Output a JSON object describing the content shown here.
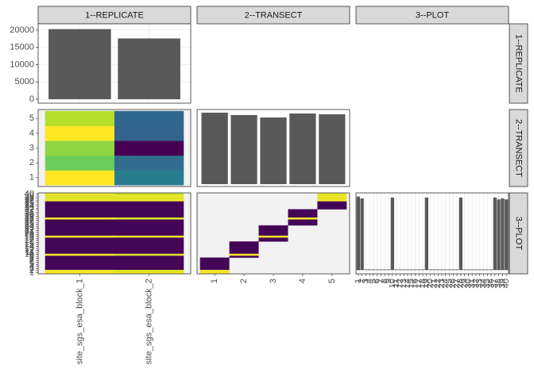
{
  "chart_data": {
    "type": "pairs",
    "variables": [
      {
        "name": "1--REPLICATE",
        "levels": [
          "site_sgs_esa_block_1",
          "site_sgs_esa_block_2"
        ]
      },
      {
        "name": "2--TRANSECT",
        "levels": [
          "1",
          "2",
          "3",
          "4",
          "5"
        ]
      },
      {
        "name": "3--PLOT",
        "levels": [
          "1",
          "2",
          "3",
          "4",
          "5",
          "6",
          "7",
          "8",
          "9",
          "10",
          "11",
          "12",
          "13",
          "14",
          "15",
          "16",
          "17",
          "18",
          "19",
          "20",
          "21",
          "22",
          "23",
          "24",
          "25",
          "26",
          "27",
          "28",
          "29",
          "30",
          "31",
          "32",
          "33",
          "34",
          "35",
          "36",
          "37",
          "38",
          "39",
          "40"
        ]
      }
    ],
    "colormap": "viridis",
    "color": "#595959",
    "panels": [
      {
        "type": "bar",
        "values": [
          20300,
          17600
        ],
        "ylim": [
          -1150,
          21840
        ],
        "yticks": [
          0,
          5000,
          10000,
          15000,
          20000
        ],
        "grid": true
      },
      {
        "type": "heatmap",
        "zlim": [
          3270,
          4150
        ],
        "z": [
          [
            4150,
            3640
          ],
          [
            3950,
            3580
          ],
          [
            4000,
            3270
          ],
          [
            4150,
            3550
          ],
          [
            4050,
            3560
          ]
        ]
      },
      {
        "type": "bar",
        "values": [
          7790,
          7530,
          7270,
          7700,
          7610
        ],
        "ylim": [
          -260,
          8130
        ]
      },
      {
        "type": "heatmap",
        "zlim": [
          0,
          2000
        ],
        "z": [
          [
            2000,
            1950
          ],
          [
            1950,
            1900
          ],
          [
            20,
            20
          ],
          [
            20,
            20
          ],
          [
            20,
            20
          ],
          [
            20,
            20
          ],
          [
            20,
            20
          ],
          [
            20,
            20
          ],
          [
            20,
            20
          ],
          [
            2000,
            1900
          ],
          [
            20,
            20
          ],
          [
            20,
            20
          ],
          [
            20,
            20
          ],
          [
            20,
            20
          ],
          [
            20,
            20
          ],
          [
            20,
            20
          ],
          [
            20,
            20
          ],
          [
            20,
            20
          ],
          [
            1980,
            1920
          ],
          [
            20,
            20
          ],
          [
            20,
            20
          ],
          [
            20,
            20
          ],
          [
            20,
            20
          ],
          [
            20,
            20
          ],
          [
            20,
            20
          ],
          [
            20,
            20
          ],
          [
            20,
            20
          ],
          [
            2000,
            1900
          ],
          [
            20,
            20
          ],
          [
            20,
            20
          ],
          [
            20,
            20
          ],
          [
            20,
            20
          ],
          [
            20,
            20
          ],
          [
            20,
            20
          ],
          [
            20,
            20
          ],
          [
            20,
            20
          ],
          [
            1950,
            1950
          ],
          [
            1900,
            1900
          ],
          [
            1900,
            1950
          ],
          [
            1950,
            1850
          ]
        ]
      },
      {
        "type": "heatmap",
        "zlim": [
          0,
          3950
        ],
        "z": [
          [
            3950,
            null,
            null,
            null,
            null
          ],
          [
            3850,
            null,
            null,
            null,
            null
          ],
          [
            40,
            null,
            null,
            null,
            null
          ],
          [
            40,
            null,
            null,
            null,
            null
          ],
          [
            40,
            null,
            null,
            null,
            null
          ],
          [
            40,
            null,
            null,
            null,
            null
          ],
          [
            40,
            null,
            null,
            null,
            null
          ],
          [
            40,
            null,
            null,
            null,
            null
          ],
          [
            null,
            40,
            null,
            null,
            null
          ],
          [
            null,
            3900,
            null,
            null,
            null
          ],
          [
            null,
            40,
            null,
            null,
            null
          ],
          [
            null,
            40,
            null,
            null,
            null
          ],
          [
            null,
            40,
            null,
            null,
            null
          ],
          [
            null,
            40,
            null,
            null,
            null
          ],
          [
            null,
            40,
            null,
            null,
            null
          ],
          [
            null,
            40,
            null,
            null,
            null
          ],
          [
            null,
            null,
            40,
            null,
            null
          ],
          [
            null,
            null,
            40,
            null,
            null
          ],
          [
            null,
            null,
            3900,
            null,
            null
          ],
          [
            null,
            null,
            40,
            null,
            null
          ],
          [
            null,
            null,
            40,
            null,
            null
          ],
          [
            null,
            null,
            40,
            null,
            null
          ],
          [
            null,
            null,
            40,
            null,
            null
          ],
          [
            null,
            null,
            40,
            null,
            null
          ],
          [
            null,
            null,
            null,
            40,
            null
          ],
          [
            null,
            null,
            null,
            40,
            null
          ],
          [
            null,
            null,
            null,
            40,
            null
          ],
          [
            null,
            null,
            null,
            3900,
            null
          ],
          [
            null,
            null,
            null,
            40,
            null
          ],
          [
            null,
            null,
            null,
            40,
            null
          ],
          [
            null,
            null,
            null,
            40,
            null
          ],
          [
            null,
            null,
            null,
            40,
            null
          ],
          [
            null,
            null,
            null,
            null,
            40
          ],
          [
            null,
            null,
            null,
            null,
            40
          ],
          [
            null,
            null,
            null,
            null,
            40
          ],
          [
            null,
            null,
            null,
            null,
            40
          ],
          [
            null,
            null,
            null,
            null,
            3900
          ],
          [
            null,
            null,
            null,
            null,
            3800
          ],
          [
            null,
            null,
            null,
            null,
            3850
          ],
          [
            null,
            null,
            null,
            null,
            3800
          ]
        ]
      },
      {
        "type": "bar",
        "values": [
          3950,
          3850,
          40,
          40,
          40,
          40,
          40,
          40,
          40,
          3900,
          40,
          40,
          40,
          40,
          40,
          40,
          40,
          40,
          3900,
          40,
          40,
          40,
          40,
          40,
          40,
          40,
          40,
          3900,
          40,
          40,
          40,
          40,
          40,
          40,
          40,
          40,
          3900,
          3800,
          3850,
          3800
        ],
        "ylim": [
          -200,
          4150
        ],
        "grid": true
      }
    ]
  }
}
